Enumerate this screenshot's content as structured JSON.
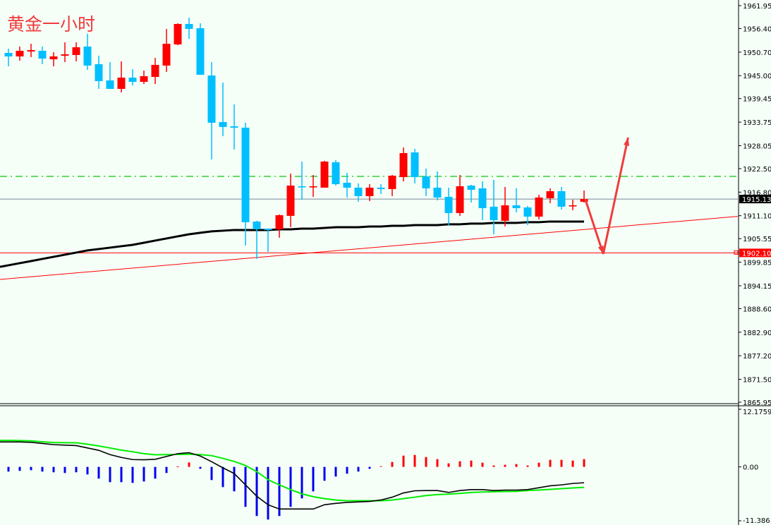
{
  "title": "黄金一小时",
  "colors": {
    "background": "#f5fff8",
    "bull": "#ff0000",
    "bear": "#00bfff",
    "ma": "#000000",
    "support_line": "#ff0000",
    "trendline": "#ff0000",
    "resistance_dashdot": "#22cc22",
    "bid_line": "#778899",
    "macd_line": "#000000",
    "signal_line": "#00ee00",
    "hist_pos": "#ff0000",
    "hist_neg": "#0000ee",
    "arrow": "#f03c3c"
  },
  "chart_data": [
    {
      "type": "candlestick",
      "title": "黄金一小时",
      "ylim": [
        1865.95,
        1961.95
      ],
      "y_ticks": [
        "1961.95",
        "1956.40",
        "1950.70",
        "1945.00",
        "1939.45",
        "1933.75",
        "1928.05",
        "1922.50",
        "1916.80",
        "1911.10",
        "1905.55",
        "1899.85",
        "1894.15",
        "1888.60",
        "1882.90",
        "1877.20",
        "1871.50",
        "1865.95"
      ],
      "candles_ohlc": [
        [
          1950.51,
          1951.53,
          1947.26,
          1949.66
        ],
        [
          1949.66,
          1952.05,
          1948.63,
          1951.02
        ],
        [
          1950.85,
          1952.73,
          1949.49,
          1951.19
        ],
        [
          1951.02,
          1952.05,
          1947.78,
          1949.14
        ],
        [
          1948.97,
          1950.68,
          1947.26,
          1949.66
        ],
        [
          1949.83,
          1953.07,
          1948.29,
          1950.17
        ],
        [
          1950.0,
          1953.07,
          1948.46,
          1951.88
        ],
        [
          1952.05,
          1955.12,
          1946.41,
          1947.44
        ],
        [
          1947.78,
          1949.83,
          1941.8,
          1943.68
        ],
        [
          1943.85,
          1948.29,
          1941.8,
          1941.8
        ],
        [
          1941.8,
          1948.46,
          1940.95,
          1944.53
        ],
        [
          1944.53,
          1946.58,
          1942.65,
          1943.51
        ],
        [
          1943.51,
          1946.24,
          1942.99,
          1944.87
        ],
        [
          1944.7,
          1949.31,
          1942.99,
          1947.61
        ],
        [
          1947.44,
          1956.32,
          1945.9,
          1952.73
        ],
        [
          1952.56,
          1957.68,
          1952.39,
          1957.51
        ],
        [
          1957.51,
          1959.05,
          1953.93,
          1956.32
        ],
        [
          1956.49,
          1957.68,
          1945.22,
          1945.22
        ],
        [
          1945.04,
          1948.29,
          1924.72,
          1933.6
        ],
        [
          1933.77,
          1943.34,
          1930.36,
          1932.58
        ],
        [
          1932.75,
          1938.04,
          1927.11,
          1932.41
        ],
        [
          1932.41,
          1933.6,
          1903.88,
          1909.52
        ],
        [
          1909.69,
          1909.86,
          1900.64,
          1907.81
        ],
        [
          1907.98,
          1907.98,
          1902.34,
          1907.64
        ],
        [
          1907.81,
          1911.4,
          1905.76,
          1911.23
        ],
        [
          1911.06,
          1921.3,
          1908.32,
          1918.4
        ],
        [
          1918.23,
          1924.21,
          1914.98,
          1918.06
        ],
        [
          1918.06,
          1920.96,
          1915.67,
          1918.23
        ],
        [
          1917.89,
          1924.38,
          1917.89,
          1924.21
        ],
        [
          1924.04,
          1924.55,
          1918.4,
          1918.74
        ],
        [
          1919.08,
          1921.47,
          1915.5,
          1917.89
        ],
        [
          1917.89,
          1918.91,
          1914.47,
          1915.84
        ],
        [
          1915.84,
          1918.74,
          1914.64,
          1917.89
        ],
        [
          1917.89,
          1918.74,
          1916.35,
          1917.55
        ],
        [
          1917.55,
          1920.96,
          1915.84,
          1920.79
        ],
        [
          1920.45,
          1927.62,
          1919.42,
          1926.26
        ],
        [
          1926.43,
          1927.28,
          1918.91,
          1920.45
        ],
        [
          1920.62,
          1922.5,
          1915.84,
          1917.72
        ],
        [
          1917.89,
          1921.82,
          1914.81,
          1915.5
        ],
        [
          1915.67,
          1917.89,
          1908.66,
          1911.74
        ],
        [
          1911.74,
          1920.96,
          1911.06,
          1918.23
        ],
        [
          1918.4,
          1918.57,
          1914.3,
          1917.37
        ],
        [
          1917.72,
          1919.42,
          1910.03,
          1912.93
        ],
        [
          1913.28,
          1919.77,
          1906.61,
          1910.03
        ],
        [
          1909.86,
          1918.06,
          1908.49,
          1913.62
        ],
        [
          1913.62,
          1917.72,
          1911.91,
          1912.93
        ],
        [
          1913.1,
          1913.45,
          1908.83,
          1910.88
        ],
        [
          1910.88,
          1916.18,
          1910.2,
          1915.5
        ],
        [
          1915.33,
          1917.72,
          1914.13,
          1917.03
        ],
        [
          1917.03,
          1918.06,
          1912.59,
          1913.28
        ],
        [
          1913.45,
          1914.98,
          1912.42,
          1913.62
        ],
        [
          1914.47,
          1917.2,
          1914.3,
          1915.15
        ]
      ],
      "moving_average": [
        1899.1,
        1899.61,
        1900.12,
        1900.64,
        1901.15,
        1901.66,
        1902.17,
        1902.69,
        1903.03,
        1903.37,
        1903.71,
        1904.05,
        1904.56,
        1905.08,
        1905.59,
        1906.1,
        1906.61,
        1906.96,
        1907.3,
        1907.47,
        1907.64,
        1907.64,
        1907.64,
        1907.64,
        1907.81,
        1907.81,
        1907.98,
        1907.98,
        1908.15,
        1908.32,
        1908.32,
        1908.32,
        1908.49,
        1908.49,
        1908.66,
        1908.66,
        1908.83,
        1908.83,
        1908.83,
        1909.01,
        1909.01,
        1909.18,
        1909.18,
        1909.35,
        1909.35,
        1909.35,
        1909.52,
        1909.52,
        1909.69,
        1909.69,
        1909.69,
        1909.69
      ],
      "horizontal_levels": {
        "bid": {
          "price": 1915.13,
          "label": "1915.13"
        },
        "support": {
          "price": 1902.1,
          "label": "1902.10"
        },
        "resistance_dashdot": {
          "price": 1920.62
        }
      },
      "trendline": {
        "from": {
          "bar": 0,
          "price": 1895.85
        },
        "to": {
          "bar": 51,
          "price": 1907.76
        }
      },
      "forecast_arrow": [
        {
          "bar": 51.1,
          "price": 1915.15
        },
        {
          "bar": 52.7,
          "price": 1901.83
        },
        {
          "bar": 54.9,
          "price": 1930.01
        }
      ]
    },
    {
      "type": "macd",
      "ylim": [
        -11.386,
        12.1759
      ],
      "y_ticks": [
        "12.1759",
        "0.00",
        "-11.386"
      ],
      "histogram": [
        -0.99,
        -0.84,
        -0.7,
        -0.99,
        -1.14,
        -1.29,
        -1.14,
        -1.59,
        -2.48,
        -3.23,
        -3.23,
        -3.38,
        -3.08,
        -2.48,
        -1.29,
        0.1,
        0.94,
        -0.4,
        -2.78,
        -4.27,
        -5.17,
        -8.45,
        -10.38,
        -11.13,
        -10.38,
        -8.45,
        -6.66,
        -5.17,
        -2.93,
        -2.04,
        -1.44,
        -0.99,
        -0.4,
        0.15,
        1.04,
        2.38,
        2.53,
        2.09,
        1.64,
        0.75,
        1.19,
        1.34,
        0.89,
        0.3,
        0.45,
        0.6,
        0.3,
        0.89,
        1.49,
        1.49,
        1.34,
        1.64
      ],
      "macd": [
        5.27,
        5.27,
        5.2,
        4.95,
        4.7,
        4.6,
        4.5,
        4.0,
        3.5,
        2.6,
        2.0,
        1.55,
        1.5,
        1.6,
        2.2,
        2.8,
        3.0,
        2.3,
        1.1,
        -0.2,
        -1.4,
        -3.8,
        -6.2,
        -8.0,
        -8.9,
        -8.9,
        -8.9,
        -8.9,
        -8.0,
        -7.7,
        -7.5,
        -7.4,
        -7.3,
        -7.0,
        -6.4,
        -5.5,
        -5.05,
        -5.0,
        -5.0,
        -5.4,
        -5.0,
        -4.8,
        -4.8,
        -5.0,
        -4.9,
        -4.9,
        -4.8,
        -4.4,
        -4.0,
        -3.8,
        -3.5,
        -3.35
      ],
      "signal": [
        5.6,
        5.55,
        5.5,
        5.3,
        5.15,
        5.12,
        5.1,
        4.8,
        4.42,
        4.0,
        3.55,
        3.2,
        2.8,
        2.55,
        2.6,
        2.63,
        2.68,
        2.6,
        2.38,
        1.8,
        1.15,
        0.3,
        -1.0,
        -2.7,
        -3.8,
        -4.8,
        -5.7,
        -6.3,
        -6.7,
        -7.0,
        -7.15,
        -7.15,
        -7.15,
        -7.15,
        -7.0,
        -6.7,
        -6.4,
        -6.05,
        -5.85,
        -5.75,
        -5.6,
        -5.4,
        -5.3,
        -5.25,
        -5.2,
        -5.17,
        -5.0,
        -4.9,
        -4.75,
        -4.6,
        -4.45,
        -4.32
      ]
    }
  ]
}
